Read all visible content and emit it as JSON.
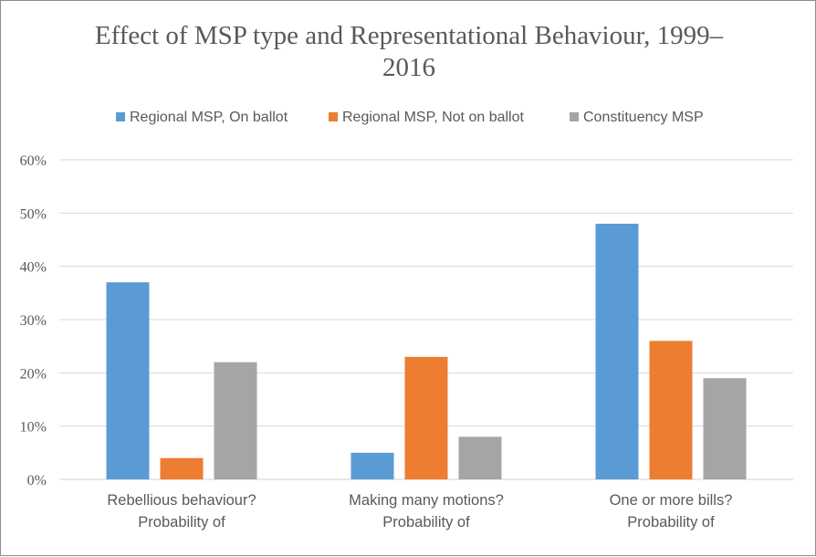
{
  "chart_data": {
    "type": "bar",
    "title": "Effect of MSP type and Representational Behaviour, 1999–2016",
    "title_lines": [
      "Effect of MSP type and Representational Behaviour, 1999–",
      "2016"
    ],
    "categories": [
      [
        "Rebellious behaviour?",
        "Probability of"
      ],
      [
        "Making many motions?",
        "Probability of"
      ],
      [
        "One or more bills?",
        "Probability of"
      ]
    ],
    "series": [
      {
        "name": "Regional MSP, On ballot",
        "color": "#5b9bd5",
        "values": [
          0.37,
          0.05,
          0.48
        ]
      },
      {
        "name": "Regional MSP, Not on ballot",
        "color": "#ed7d31",
        "values": [
          0.04,
          0.23,
          0.26
        ]
      },
      {
        "name": "Constituency MSP",
        "color": "#a5a5a5",
        "values": [
          0.22,
          0.08,
          0.19
        ]
      }
    ],
    "ylim": [
      0,
      0.6
    ],
    "yticks": [
      0,
      0.1,
      0.2,
      0.3,
      0.4,
      0.5,
      0.6
    ],
    "ytick_labels": [
      "0%",
      "10%",
      "20%",
      "30%",
      "40%",
      "50%",
      "60%"
    ],
    "grid": true,
    "legend": "top"
  }
}
